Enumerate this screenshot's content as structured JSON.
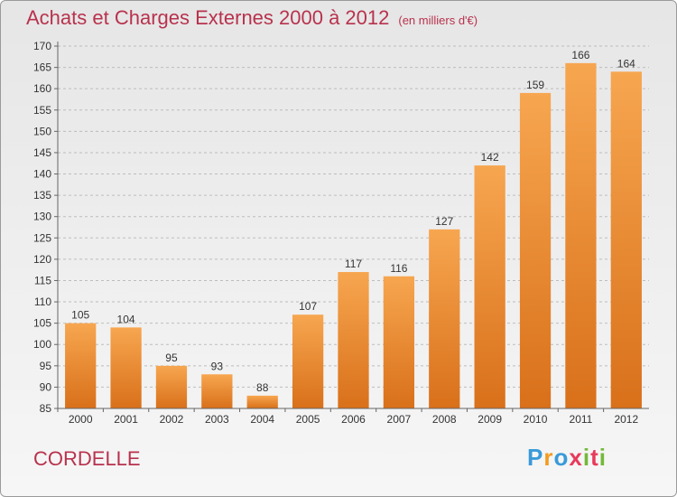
{
  "title": "Achats et Charges Externes 2000 à 2012",
  "unit": "(en milliers d'€)",
  "commune": "CORDELLE",
  "logo": {
    "letters": [
      "P",
      "r",
      "o",
      "x",
      "i",
      "t",
      "i"
    ],
    "colors": [
      "#3a9ad9",
      "#f29c1f",
      "#3a9ad9",
      "#e83a5b",
      "#74b83a",
      "#e83a5b",
      "#74b83a"
    ]
  },
  "colors": {
    "bar_top": "#f7a650",
    "bar_bottom": "#d9701a",
    "title": "#b8324d"
  },
  "chart_data": {
    "type": "bar",
    "categories": [
      "2000",
      "2001",
      "2002",
      "2003",
      "2004",
      "2005",
      "2006",
      "2007",
      "2008",
      "2009",
      "2010",
      "2011",
      "2012"
    ],
    "values": [
      105,
      104,
      95,
      93,
      88,
      107,
      117,
      116,
      127,
      142,
      159,
      166,
      164
    ],
    "ylim": [
      85,
      170
    ],
    "yticks": [
      85,
      90,
      95,
      100,
      105,
      110,
      115,
      120,
      125,
      130,
      135,
      140,
      145,
      150,
      155,
      160,
      165,
      170
    ],
    "grid": "horizontal-dashed",
    "xlabel": "",
    "ylabel": ""
  }
}
